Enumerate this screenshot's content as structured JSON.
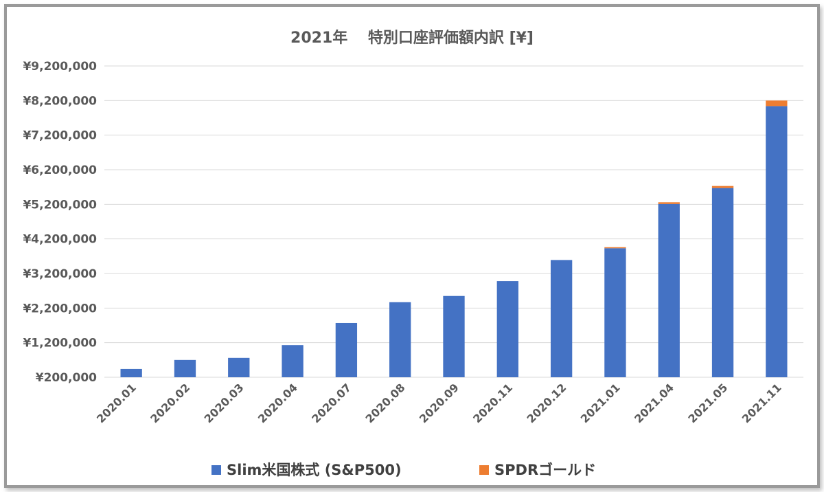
{
  "chart_data": {
    "type": "bar",
    "stacked": true,
    "title": "2021年　 特別口座評価額内訳 [¥]",
    "categories": [
      "2020.01",
      "2020.02",
      "2020.03",
      "2020.04",
      "2020.07",
      "2020.08",
      "2020.09",
      "2020.11",
      "2020.12",
      "2021.01",
      "2021.04",
      "2021.05",
      "2021.11"
    ],
    "series": [
      {
        "name": "Slim米国株式 (S&P500)",
        "color": "#4472C4",
        "values": [
          240000,
          500000,
          560000,
          930000,
          1570000,
          2170000,
          2350000,
          2780000,
          3390000,
          3730000,
          5010000,
          5470000,
          7840000
        ]
      },
      {
        "name": "SPDRゴールド",
        "color": "#ED7D31",
        "values": [
          0,
          0,
          0,
          0,
          0,
          0,
          0,
          0,
          0,
          30000,
          50000,
          60000,
          160000
        ]
      }
    ],
    "yticks": [
      "¥200,000",
      "¥1,200,000",
      "¥2,200,000",
      "¥3,200,000",
      "¥4,200,000",
      "¥5,200,000",
      "¥6,200,000",
      "¥7,200,000",
      "¥8,200,000",
      "¥9,200,000"
    ],
    "ylim": [
      200000,
      9200000
    ],
    "grid": true,
    "legend": "bottom"
  }
}
